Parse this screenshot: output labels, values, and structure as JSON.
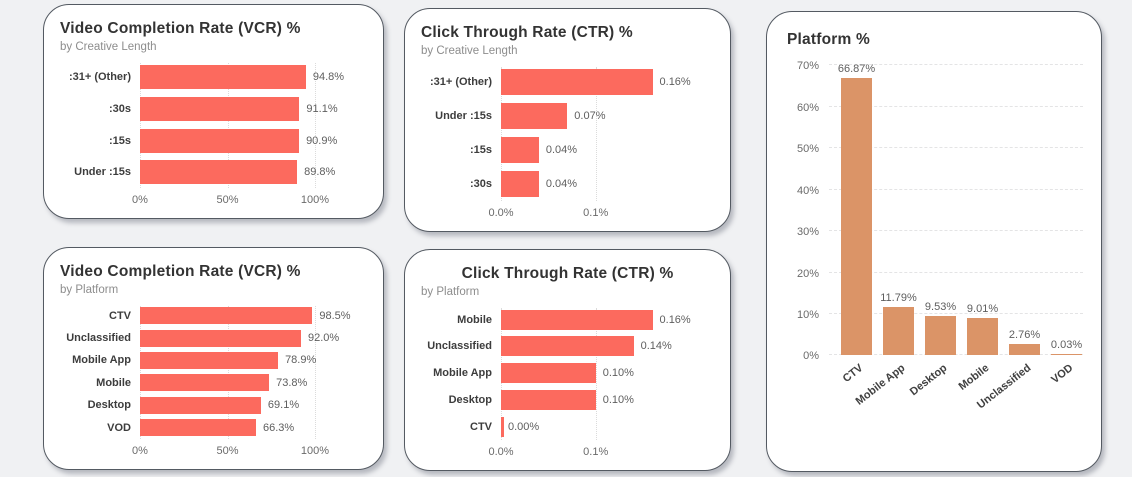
{
  "chart_data": [
    {
      "type": "bar",
      "orientation": "horizontal",
      "title": "Video Completion Rate (VCR) %",
      "subtitle": "by Creative Length",
      "categories": [
        ":31+ (Other)",
        ":30s",
        ":15s",
        "Under :15s"
      ],
      "values": [
        94.8,
        91.1,
        90.9,
        89.8
      ],
      "value_labels": [
        "94.8%",
        "91.1%",
        "90.9%",
        "89.8%"
      ],
      "xlim": [
        0,
        100
      ],
      "xticks": [
        {
          "value": 0,
          "label": "0%"
        },
        {
          "value": 50,
          "label": "50%"
        },
        {
          "value": 100,
          "label": "100%"
        }
      ],
      "grid": "dotted-vertical",
      "bar_color": "#FC6A5E"
    },
    {
      "type": "bar",
      "orientation": "horizontal",
      "title": "Click Through Rate (CTR) %",
      "subtitle": "by Creative Length",
      "categories": [
        ":31+ (Other)",
        "Under :15s",
        ":15s",
        ":30s"
      ],
      "values": [
        0.16,
        0.07,
        0.04,
        0.04
      ],
      "value_labels": [
        "0.16%",
        "0.07%",
        "0.04%",
        "0.04%"
      ],
      "xlim": [
        0,
        0.17
      ],
      "xticks": [
        {
          "value": 0,
          "label": "0.0%"
        },
        {
          "value": 0.1,
          "label": "0.1%"
        }
      ],
      "grid": "dotted-vertical",
      "bar_color": "#FC6A5E"
    },
    {
      "type": "bar",
      "orientation": "horizontal",
      "title": "Video Completion Rate (VCR) %",
      "subtitle": "by Platform",
      "categories": [
        "CTV",
        "Unclassified",
        "Mobile App",
        "Mobile",
        "Desktop",
        "VOD"
      ],
      "values": [
        98.5,
        92.0,
        78.9,
        73.8,
        69.1,
        66.3
      ],
      "value_labels": [
        "98.5%",
        "92.0%",
        "78.9%",
        "73.8%",
        "69.1%",
        "66.3%"
      ],
      "xlim": [
        0,
        100
      ],
      "xticks": [
        {
          "value": 0,
          "label": "0%"
        },
        {
          "value": 50,
          "label": "50%"
        },
        {
          "value": 100,
          "label": "100%"
        }
      ],
      "grid": "dotted-vertical",
      "bar_color": "#FC6A5E"
    },
    {
      "type": "bar",
      "orientation": "horizontal",
      "title": "Click Through Rate (CTR) %",
      "subtitle": "by Platform",
      "categories": [
        "Mobile",
        "Unclassified",
        "Mobile App",
        "Desktop",
        "CTV"
      ],
      "values": [
        0.16,
        0.14,
        0.1,
        0.1,
        0.0
      ],
      "value_labels": [
        "0.16%",
        "0.14%",
        "0.10%",
        "0.10%",
        "0.00%"
      ],
      "xlim": [
        0,
        0.17
      ],
      "xticks": [
        {
          "value": 0,
          "label": "0.0%"
        },
        {
          "value": 0.1,
          "label": "0.1%"
        }
      ],
      "grid": "dotted-vertical",
      "bar_color": "#FC6A5E"
    },
    {
      "type": "bar",
      "orientation": "vertical",
      "title": "Platform %",
      "categories": [
        "CTV",
        "Mobile App",
        "Desktop",
        "Mobile",
        "Unclassified",
        "VOD"
      ],
      "values": [
        66.87,
        11.79,
        9.53,
        9.01,
        2.76,
        0.03
      ],
      "value_labels": [
        "66.87%",
        "11.79%",
        "9.53%",
        "9.01%",
        "2.76%",
        "0.03%"
      ],
      "ylim": [
        0,
        70
      ],
      "yticks": [
        {
          "value": 0,
          "label": "0%"
        },
        {
          "value": 10,
          "label": "10%"
        },
        {
          "value": 20,
          "label": "20%"
        },
        {
          "value": 30,
          "label": "30%"
        },
        {
          "value": 40,
          "label": "40%"
        },
        {
          "value": 50,
          "label": "50%"
        },
        {
          "value": 60,
          "label": "60%"
        },
        {
          "value": 70,
          "label": "70%"
        }
      ],
      "grid": "dashed-horizontal",
      "bar_color": "#DB9467"
    }
  ]
}
